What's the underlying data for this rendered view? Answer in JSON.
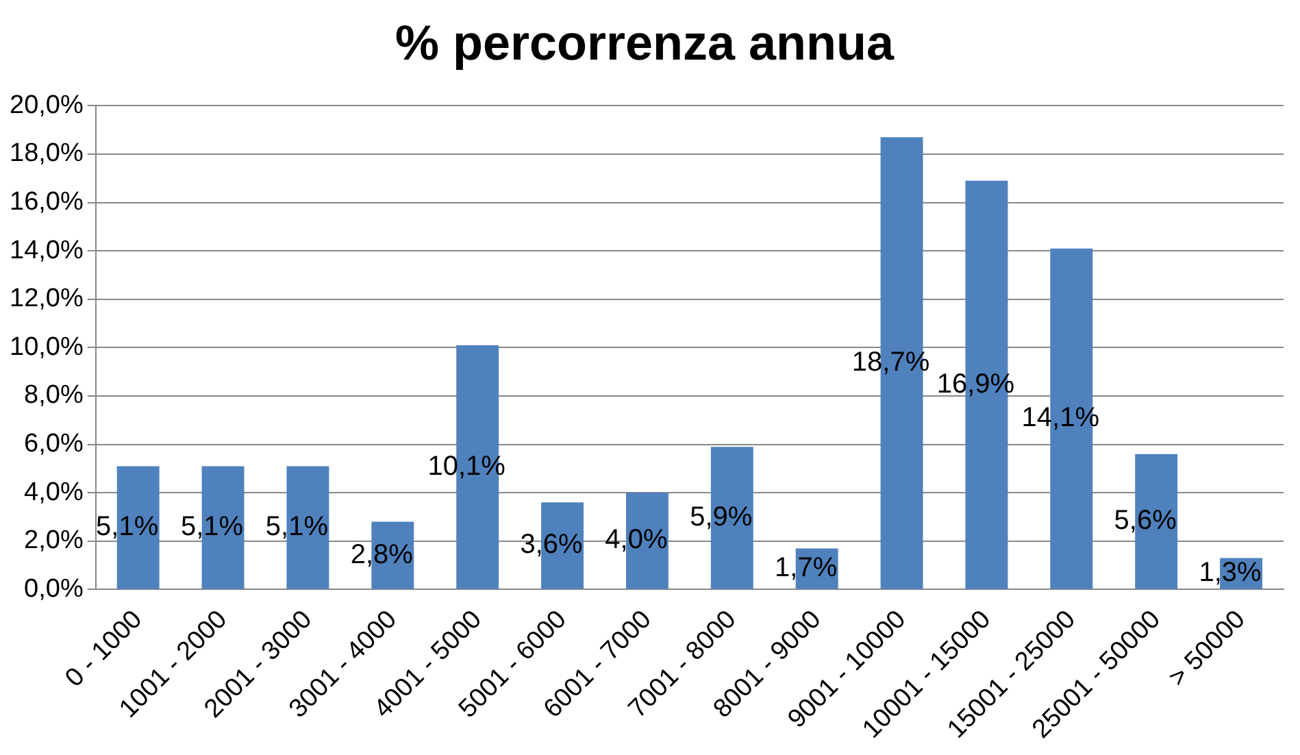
{
  "chart_data": {
    "type": "bar",
    "title": "% percorrenza annua",
    "categories": [
      "0 - 1000",
      "1001 - 2000",
      "2001 - 3000",
      "3001 - 4000",
      "4001 - 5000",
      "5001 - 6000",
      "6001 - 7000",
      "7001 - 8000",
      "8001 - 9000",
      "9001 - 10000",
      "10001 - 15000",
      "15001 - 25000",
      "25001 - 50000",
      "> 50000"
    ],
    "values": [
      5.1,
      5.1,
      5.1,
      2.8,
      10.1,
      3.6,
      4.0,
      5.9,
      1.7,
      18.7,
      16.9,
      14.1,
      5.6,
      1.3
    ],
    "value_labels": [
      "5,1%",
      "5,1%",
      "5,1%",
      "2,8%",
      "10,1%",
      "3,6%",
      "4,0%",
      "5,9%",
      "1,7%",
      "18,7%",
      "16,9%",
      "14,1%",
      "5,6%",
      "1,3%"
    ],
    "color": "#4f81bd",
    "ylim": [
      0,
      20
    ],
    "yticks": [
      {
        "value": 0,
        "label": "0,0%"
      },
      {
        "value": 2,
        "label": "2,0%"
      },
      {
        "value": 4,
        "label": "4,0%"
      },
      {
        "value": 6,
        "label": "6,0%"
      },
      {
        "value": 8,
        "label": "8,0%"
      },
      {
        "value": 10,
        "label": "10,0%"
      },
      {
        "value": 12,
        "label": "12,0%"
      },
      {
        "value": 14,
        "label": "14,0%"
      },
      {
        "value": 16,
        "label": "16,0%"
      },
      {
        "value": 18,
        "label": "18,0%"
      },
      {
        "value": 20,
        "label": "20,0%"
      }
    ],
    "grid": "y",
    "legend": false
  }
}
